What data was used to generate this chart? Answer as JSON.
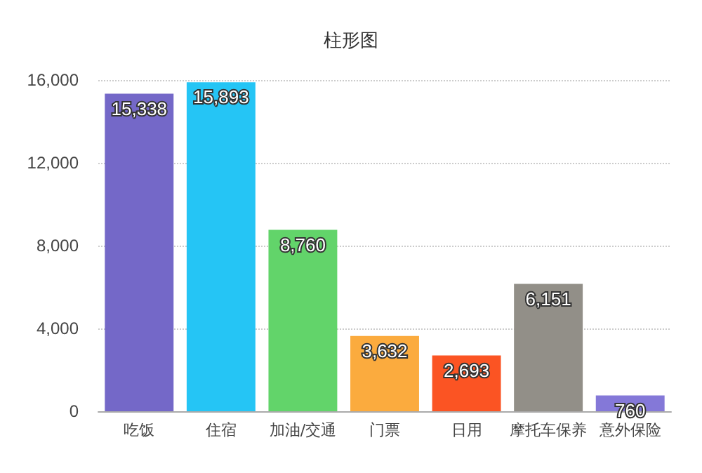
{
  "chart_data": {
    "type": "bar",
    "title": "柱形图",
    "categories": [
      "吃饭",
      "住宿",
      "加油/交通",
      "门票",
      "日用",
      "摩托车保养",
      "意外保险"
    ],
    "values": [
      15338,
      15893,
      8760,
      3632,
      2693,
      6151,
      760
    ],
    "value_labels": [
      "15,338",
      "15,893",
      "8,760",
      "3,632",
      "2,693",
      "6,151",
      "760"
    ],
    "colors": [
      "#7468c8",
      "#25c5f5",
      "#62d46a",
      "#fbab3e",
      "#fb5423",
      "#928f88",
      "#8478d8"
    ],
    "ylim": [
      0,
      16000
    ],
    "yticks": [
      0,
      {
        "value": 4000,
        "label": "4,000"
      },
      {
        "value": 8000,
        "label": "8,000"
      },
      {
        "value": 12000,
        "label": "12,000"
      },
      {
        "value": 16000,
        "label": "16,000"
      }
    ],
    "grid": "y"
  }
}
